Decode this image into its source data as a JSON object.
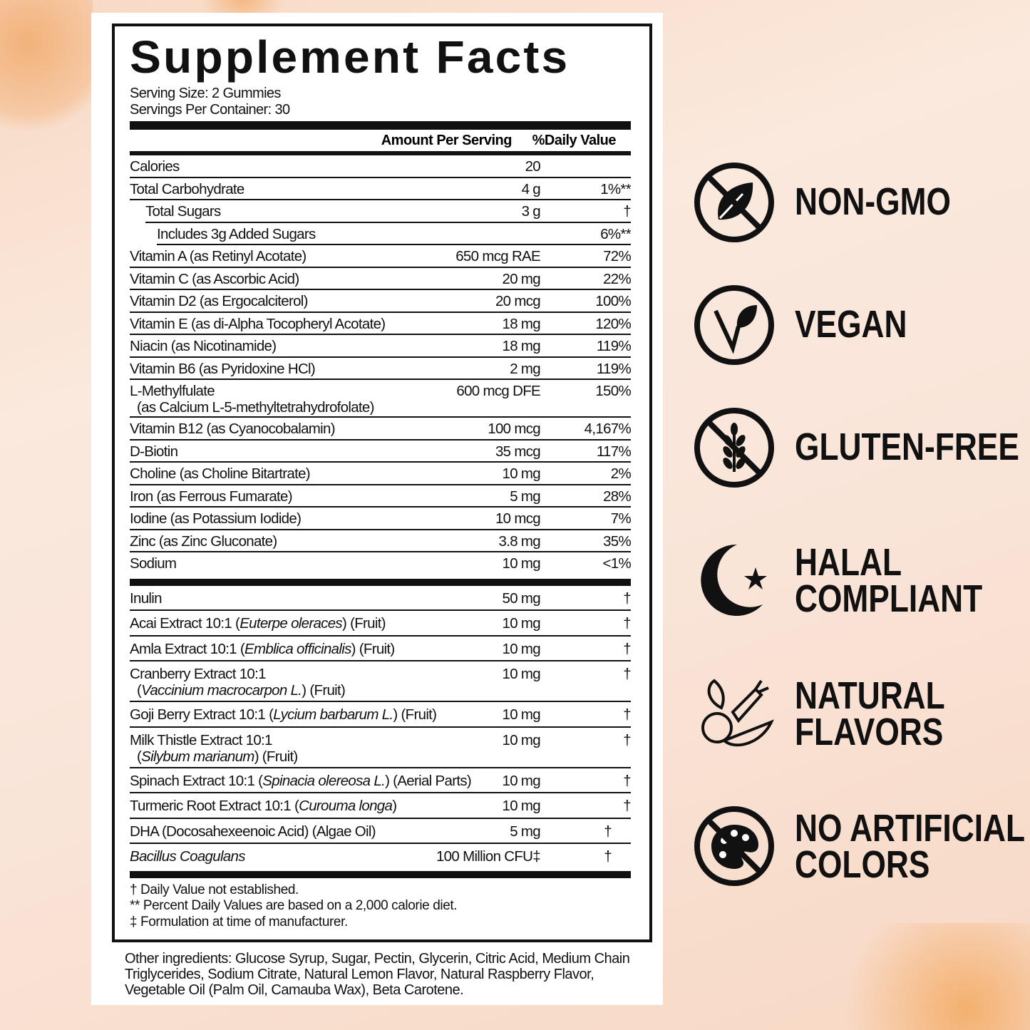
{
  "title": "Supplement Facts",
  "serving_size": "Serving Size: 2 Gummies",
  "servings_per_container": "Servings Per Container: 30",
  "headers": {
    "amount": "Amount Per Serving",
    "dv": "%Daily Value"
  },
  "nutrients": [
    {
      "name": [
        "Calories"
      ],
      "amount": "20",
      "dv": ""
    },
    {
      "name": [
        "Total Carbohydrate"
      ],
      "amount": "4 g",
      "dv": "1%**"
    },
    {
      "name": [
        "Total Sugars"
      ],
      "amount": "3 g",
      "dv": "†",
      "indent": 1
    },
    {
      "name": [
        "Includes 3g Added Sugars"
      ],
      "amount": "",
      "dv": "6%**",
      "indent": 2
    },
    {
      "name": [
        "Vitamin A (as Retinyl Acotate)"
      ],
      "amount": "650 mcg RAE",
      "dv": "72%"
    },
    {
      "name": [
        "Vitamin C (as Ascorbic Acid)"
      ],
      "amount": "20 mg",
      "dv": "22%"
    },
    {
      "name": [
        "Vitamin D2 (as Ergocalciterol)"
      ],
      "amount": "20 mcg",
      "dv": "100%"
    },
    {
      "name": [
        "Vitamin E (as di-Alpha Tocopheryl Acotate)"
      ],
      "amount": "18 mg",
      "dv": "120%"
    },
    {
      "name": [
        "Niacin (as Nicotinamide)"
      ],
      "amount": "18 mg",
      "dv": "119%"
    },
    {
      "name": [
        "Vitamin B6 (as Pyridoxine HCl)"
      ],
      "amount": "2 mg",
      "dv": "119%"
    },
    {
      "name": [
        "L-Methylfulate"
      ],
      "line2": [
        "(as Calcium L-5-methyltetrahydrofolate)"
      ],
      "amount": "600 mcg DFE",
      "dv": "150%"
    },
    {
      "name": [
        "Vitamin B12 (as Cyanocobalamin)"
      ],
      "amount": "100 mcg",
      "dv": "4,167%"
    },
    {
      "name": [
        "D-Biotin"
      ],
      "amount": "35 mcg",
      "dv": "117%"
    },
    {
      "name": [
        "Choline (as Choline Bitartrate)"
      ],
      "amount": "10 mg",
      "dv": "2%"
    },
    {
      "name": [
        "Iron (as Ferrous Fumarate)"
      ],
      "amount": "5 mg",
      "dv": "28%"
    },
    {
      "name": [
        "Iodine (as Potassium Iodide)"
      ],
      "amount": "10 mcg",
      "dv": "7%"
    },
    {
      "name": [
        "Zinc (as Zinc Gluconate)"
      ],
      "amount": "3.8 mg",
      "dv": "35%"
    },
    {
      "name": [
        "Sodium"
      ],
      "amount": "10 mg",
      "dv": "<1%"
    }
  ],
  "blend": [
    {
      "name": [
        "Inulin"
      ],
      "amount": "50 mg",
      "dv": "†"
    },
    {
      "name": [
        "Acai Extract 10:1 (",
        "Euterpe oleraces",
        ") (Fruit)"
      ],
      "amount": "10 mg",
      "dv": "†"
    },
    {
      "name": [
        "Amla Extract 10:1 (",
        "Emblica officinalis",
        ") (Fruit)"
      ],
      "amount": "10 mg",
      "dv": "†"
    },
    {
      "name": [
        "Cranberry Extract 10:1"
      ],
      "line2": [
        "(",
        "Vaccinium macrocarpon L.",
        ") (Fruit)"
      ],
      "amount": "10 mg",
      "dv": "†"
    },
    {
      "name": [
        "Goji Berry Extract 10:1 (",
        "Lycium barbarum L.",
        ") (Fruit)"
      ],
      "amount": "10 mg",
      "dv": "†"
    },
    {
      "name": [
        "Milk Thistle Extract 10:1"
      ],
      "line2": [
        "(",
        "Silybum marianum",
        ") (Fruit)"
      ],
      "amount": "10 mg",
      "dv": "†"
    },
    {
      "name": [
        "Spinach Extract 10:1 (",
        "Spinacia olereosa L.",
        ") (Aerial Parts)"
      ],
      "amount": "10 mg",
      "dv": "†"
    },
    {
      "name": [
        "Turmeric Root Extract 10:1 (",
        "Curouma longa",
        ")"
      ],
      "amount": "10 mg",
      "dv": "†"
    },
    {
      "name": [
        "DHA (Docosahexeenoic Acid) (Algae Oil)"
      ],
      "amount": "5 mg",
      "dv": "†",
      "shift": 1
    },
    {
      "name": [
        "",
        "Bacillus Coagulans"
      ],
      "amount": "100 Million CFU‡",
      "dv": "†",
      "shift": 1
    }
  ],
  "footnotes": [
    "† Daily Value not established.",
    "** Percent Daily Values are based on a 2,000 calorie diet.",
    "‡ Formulation at time of manufacturer."
  ],
  "other_ingredients": "Other ingredients: Glucose Syrup, Sugar, Pectin, Glycerin, Citric Acid, Medium Chain Triglycerides, Sodium Citrate, Natural Lemon Flavor, Natural Raspberry Flavor, Vegetable Oil (Palm Oil, Camauba Wax), Beta Carotene.",
  "badges": [
    {
      "icon": "no-leaf-icon",
      "lines": [
        "NON-GMO"
      ]
    },
    {
      "icon": "vegan-v-leaf-icon",
      "lines": [
        "VEGAN"
      ]
    },
    {
      "icon": "no-wheat-icon",
      "lines": [
        "GLUTEN-FREE"
      ]
    },
    {
      "icon": "crescent-star-icon",
      "lines": [
        "HALAL",
        "COMPLIANT"
      ]
    },
    {
      "icon": "fruit-vegetable-icon",
      "lines": [
        "NATURAL",
        "FLAVORS"
      ]
    },
    {
      "icon": "no-palette-icon",
      "lines": [
        "NO ARTIFICIAL",
        "COLORS"
      ]
    }
  ]
}
